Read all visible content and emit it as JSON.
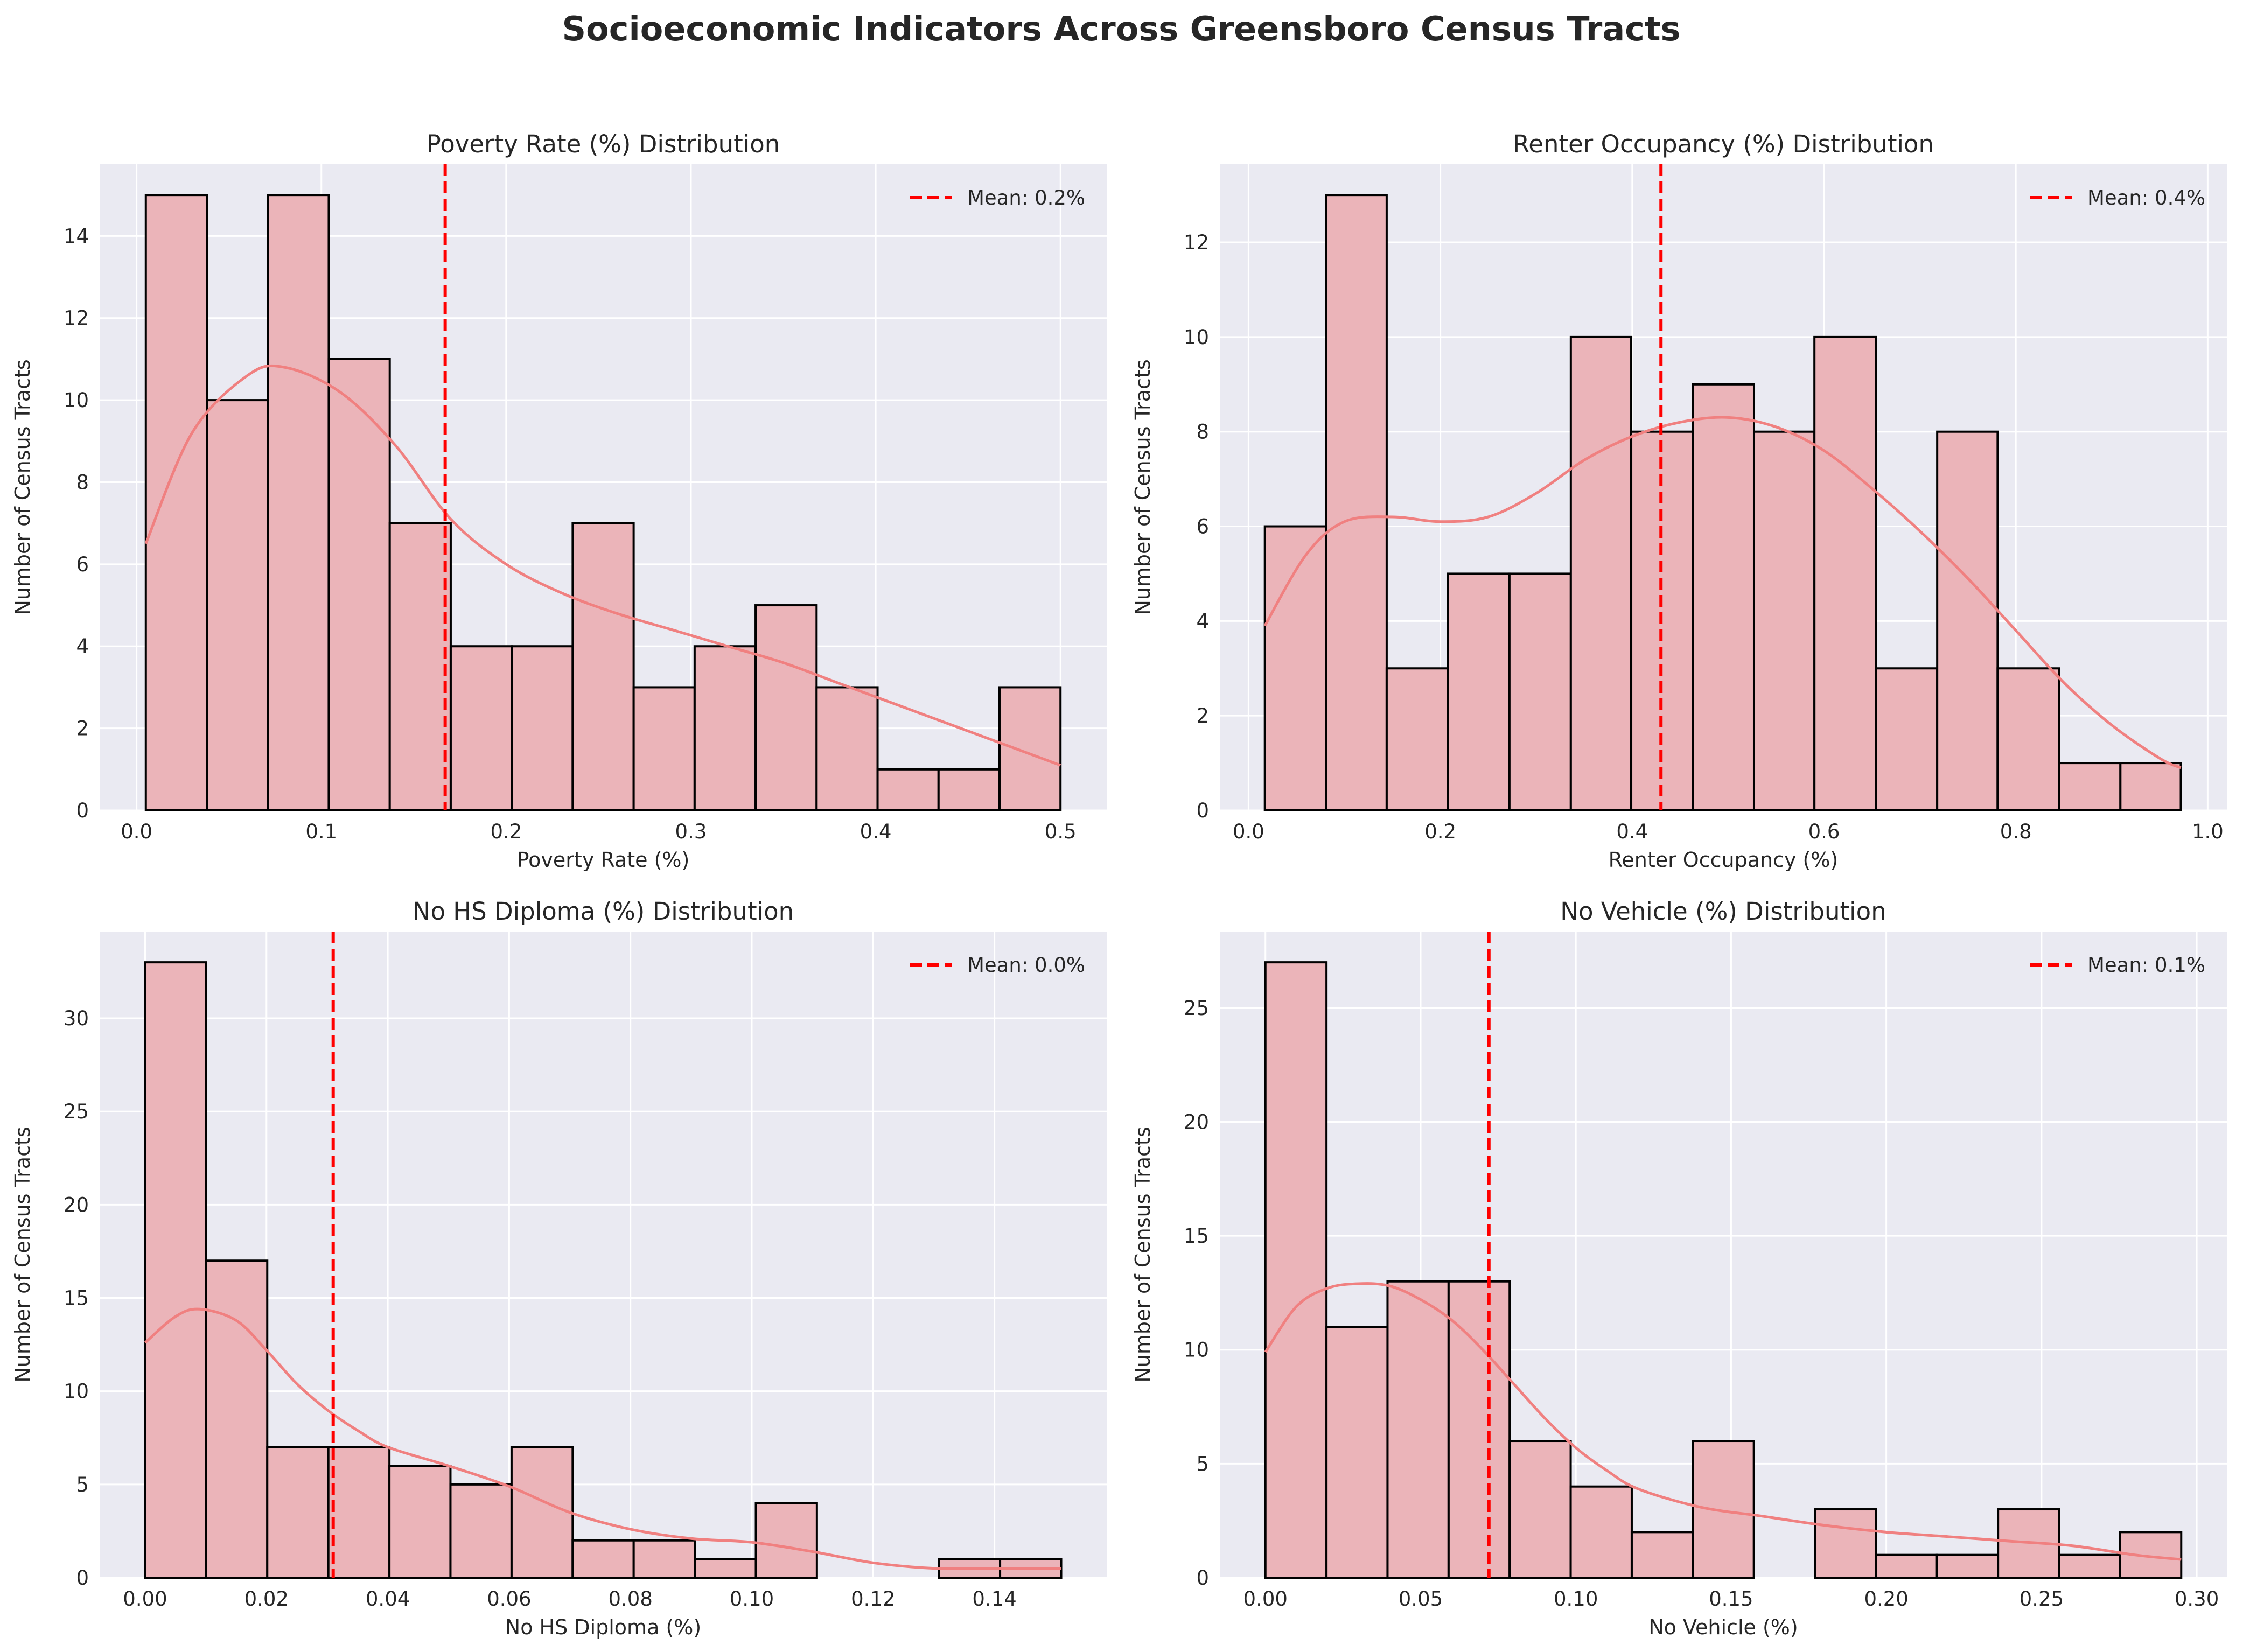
{
  "figure": {
    "title": "Socioeconomic Indicators Across Greensboro Census Tracts",
    "colors": {
      "background": "#eaeaf2",
      "grid": "#ffffff",
      "bar_fill": "#ebb4b9",
      "bar_edge": "#000000",
      "kde": "#f08080",
      "mean_line": "#ff0000"
    }
  },
  "chart_data": [
    {
      "type": "bar",
      "title": "Poverty Rate (%) Distribution",
      "xlabel": "Poverty Rate (%)",
      "ylabel": "Number of Census Tracts",
      "xlim": [
        -0.02,
        0.525
      ],
      "ylim": [
        0,
        15.75
      ],
      "xticks": [
        0.0,
        0.1,
        0.2,
        0.3,
        0.4,
        0.5
      ],
      "xtick_labels": [
        "0.0",
        "0.1",
        "0.2",
        "0.3",
        "0.4",
        "0.5"
      ],
      "yticks": [
        0,
        2,
        4,
        6,
        8,
        10,
        12,
        14
      ],
      "ytick_labels": [
        "0",
        "2",
        "4",
        "6",
        "8",
        "10",
        "12",
        "14"
      ],
      "bin_edges": [
        0.005,
        0.038,
        0.071,
        0.104,
        0.137,
        0.17,
        0.203,
        0.236,
        0.269,
        0.302,
        0.335,
        0.368,
        0.401,
        0.434,
        0.467,
        0.5
      ],
      "counts": [
        15,
        10,
        15,
        11,
        7,
        4,
        4,
        7,
        3,
        4,
        5,
        3,
        1,
        1,
        3
      ],
      "kde_x": [
        0.005,
        0.03,
        0.06,
        0.08,
        0.11,
        0.14,
        0.17,
        0.2,
        0.23,
        0.26,
        0.29,
        0.32,
        0.35,
        0.38,
        0.41,
        0.44,
        0.47,
        0.5
      ],
      "kde_y": [
        6.5,
        9.2,
        10.6,
        10.8,
        10.2,
        8.9,
        7.1,
        6.0,
        5.3,
        4.8,
        4.4,
        4.0,
        3.6,
        3.1,
        2.6,
        2.1,
        1.6,
        1.1
      ],
      "mean": 0.167,
      "legend": "Mean: 0.2%",
      "legend_loc": "upper right"
    },
    {
      "type": "bar",
      "title": "Renter Occupancy (%) Distribution",
      "xlabel": "Renter Occupancy (%)",
      "ylabel": "Number of Census Tracts",
      "xlim": [
        -0.03,
        1.02
      ],
      "ylim": [
        0,
        13.65
      ],
      "xticks": [
        0.0,
        0.2,
        0.4,
        0.6,
        0.8,
        1.0
      ],
      "xtick_labels": [
        "0.0",
        "0.2",
        "0.4",
        "0.6",
        "0.8",
        "1.0"
      ],
      "yticks": [
        0,
        2,
        4,
        6,
        8,
        10,
        12
      ],
      "ytick_labels": [
        "0",
        "2",
        "4",
        "6",
        "8",
        "10",
        "12"
      ],
      "bin_edges": [
        0.017,
        0.081,
        0.144,
        0.208,
        0.272,
        0.336,
        0.399,
        0.463,
        0.527,
        0.59,
        0.654,
        0.718,
        0.781,
        0.845,
        0.909,
        0.972
      ],
      "counts": [
        6,
        13,
        3,
        5,
        5,
        10,
        8,
        9,
        8,
        10,
        3,
        8,
        3,
        1,
        1
      ],
      "kde_x": [
        0.017,
        0.06,
        0.1,
        0.15,
        0.2,
        0.25,
        0.3,
        0.35,
        0.4,
        0.45,
        0.5,
        0.55,
        0.6,
        0.65,
        0.7,
        0.75,
        0.8,
        0.85,
        0.9,
        0.95,
        0.972
      ],
      "kde_y": [
        3.9,
        5.4,
        6.1,
        6.2,
        6.1,
        6.2,
        6.7,
        7.4,
        7.9,
        8.2,
        8.3,
        8.1,
        7.6,
        6.8,
        5.9,
        4.9,
        3.8,
        2.7,
        1.8,
        1.1,
        0.9
      ],
      "mean": 0.43,
      "legend": "Mean: 0.4%",
      "legend_loc": "upper right"
    },
    {
      "type": "bar",
      "title": "No HS Diploma (%) Distribution",
      "xlabel": "No HS Diploma (%)",
      "ylabel": "Number of Census Tracts",
      "xlim": [
        -0.0075,
        0.1585
      ],
      "ylim": [
        0,
        34.65
      ],
      "xticks": [
        0.0,
        0.02,
        0.04,
        0.06,
        0.08,
        0.1,
        0.12,
        0.14
      ],
      "xtick_labels": [
        "0.00",
        "0.02",
        "0.04",
        "0.06",
        "0.08",
        "0.10",
        "0.12",
        "0.14"
      ],
      "yticks": [
        0,
        5,
        10,
        15,
        20,
        25,
        30
      ],
      "ytick_labels": [
        "0",
        "5",
        "10",
        "15",
        "20",
        "25",
        "30"
      ],
      "bin_edges": [
        0.0,
        0.01007,
        0.02013,
        0.0302,
        0.04027,
        0.05033,
        0.0604,
        0.07047,
        0.08053,
        0.0906,
        0.10067,
        0.11073,
        0.1208,
        0.13087,
        0.14093,
        0.151
      ],
      "counts": [
        33,
        17,
        7,
        7,
        6,
        5,
        7,
        2,
        2,
        1,
        4,
        0,
        0,
        1,
        1
      ],
      "kde_x": [
        0.0,
        0.005,
        0.009,
        0.015,
        0.02,
        0.025,
        0.03,
        0.035,
        0.04,
        0.05,
        0.06,
        0.07,
        0.08,
        0.09,
        0.1,
        0.11,
        0.12,
        0.13,
        0.14,
        0.151
      ],
      "kde_y": [
        12.6,
        14.0,
        14.4,
        13.8,
        12.2,
        10.4,
        9.0,
        7.9,
        7.0,
        6.0,
        4.9,
        3.5,
        2.6,
        2.1,
        1.9,
        1.4,
        0.8,
        0.5,
        0.5,
        0.5
      ],
      "mean": 0.031,
      "legend": "Mean: 0.0%",
      "legend_loc": "upper right"
    },
    {
      "type": "bar",
      "title": "No Vehicle (%) Distribution",
      "xlabel": "No Vehicle (%)",
      "ylabel": "Number of Census Tracts",
      "xlim": [
        -0.0147,
        0.3097
      ],
      "ylim": [
        0,
        28.35
      ],
      "xticks": [
        0.0,
        0.05,
        0.1,
        0.15,
        0.2,
        0.25,
        0.3
      ],
      "xtick_labels": [
        "0.00",
        "0.05",
        "0.10",
        "0.15",
        "0.20",
        "0.25",
        "0.30"
      ],
      "yticks": [
        0,
        5,
        10,
        15,
        20,
        25
      ],
      "ytick_labels": [
        "0",
        "5",
        "10",
        "15",
        "20",
        "25"
      ],
      "bin_edges": [
        0.0,
        0.01967,
        0.03933,
        0.059,
        0.07867,
        0.09833,
        0.118,
        0.13767,
        0.15733,
        0.177,
        0.19667,
        0.21633,
        0.236,
        0.25567,
        0.27533,
        0.295
      ],
      "counts": [
        27,
        11,
        13,
        13,
        6,
        4,
        2,
        6,
        0,
        3,
        1,
        1,
        3,
        1,
        2
      ],
      "kde_x": [
        0.0,
        0.01,
        0.02,
        0.03,
        0.04,
        0.05,
        0.06,
        0.07,
        0.08,
        0.09,
        0.1,
        0.11,
        0.12,
        0.14,
        0.16,
        0.18,
        0.2,
        0.22,
        0.24,
        0.26,
        0.28,
        0.295
      ],
      "kde_y": [
        9.9,
        11.9,
        12.7,
        12.9,
        12.8,
        12.2,
        11.3,
        10.0,
        8.5,
        7.0,
        5.7,
        4.7,
        3.9,
        3.1,
        2.7,
        2.3,
        2.0,
        1.8,
        1.6,
        1.4,
        1.0,
        0.8
      ],
      "mean": 0.072,
      "legend": "Mean: 0.1%",
      "legend_loc": "upper right"
    }
  ]
}
